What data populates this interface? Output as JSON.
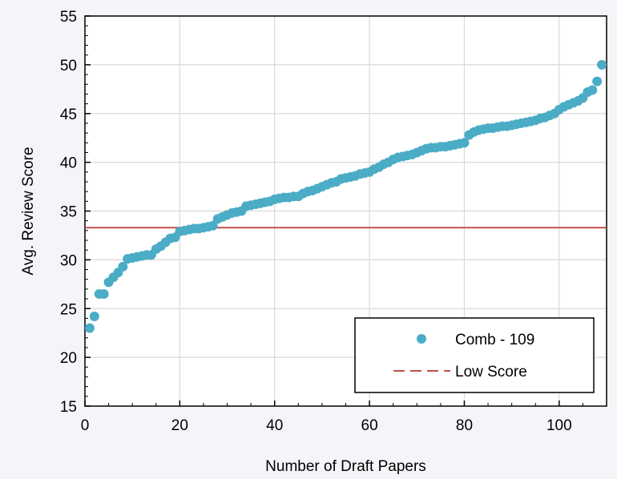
{
  "chart_data": {
    "type": "scatter",
    "xlabel": "Number of Draft Papers",
    "ylabel": "Avg. Review Score",
    "xlim": [
      0,
      110
    ],
    "ylim": [
      15,
      55
    ],
    "x_ticks": [
      0,
      20,
      40,
      60,
      80,
      100
    ],
    "y_ticks": [
      15,
      20,
      25,
      30,
      35,
      40,
      45,
      50,
      55
    ],
    "grid": true,
    "legend_position": "bottom-right",
    "colors": {
      "points": "#4bacc6",
      "line": "#c0504d"
    },
    "series": [
      {
        "name": "Comb - 109",
        "type": "scatter",
        "x": [
          1,
          2,
          3,
          4,
          5,
          6,
          7,
          8,
          9,
          10,
          11,
          12,
          13,
          14,
          15,
          16,
          17,
          18,
          19,
          20,
          21,
          22,
          23,
          24,
          25,
          26,
          27,
          28,
          29,
          30,
          31,
          32,
          33,
          34,
          35,
          36,
          37,
          38,
          39,
          40,
          41,
          42,
          43,
          44,
          45,
          46,
          47,
          48,
          49,
          50,
          51,
          52,
          53,
          54,
          55,
          56,
          57,
          58,
          59,
          60,
          61,
          62,
          63,
          64,
          65,
          66,
          67,
          68,
          69,
          70,
          71,
          72,
          73,
          74,
          75,
          76,
          77,
          78,
          79,
          80,
          81,
          82,
          83,
          84,
          85,
          86,
          87,
          88,
          89,
          90,
          91,
          92,
          93,
          94,
          95,
          96,
          97,
          98,
          99,
          100,
          101,
          102,
          103,
          104,
          105,
          106,
          107,
          108,
          109
        ],
        "y": [
          23.0,
          24.2,
          26.5,
          26.5,
          27.7,
          28.2,
          28.7,
          29.3,
          30.1,
          30.2,
          30.3,
          30.4,
          30.5,
          30.5,
          31.1,
          31.4,
          31.8,
          32.2,
          32.3,
          32.9,
          33.0,
          33.1,
          33.2,
          33.2,
          33.3,
          33.4,
          33.5,
          34.2,
          34.4,
          34.6,
          34.8,
          34.9,
          35.0,
          35.5,
          35.6,
          35.7,
          35.8,
          35.9,
          36.0,
          36.2,
          36.3,
          36.4,
          36.4,
          36.5,
          36.5,
          36.8,
          37.0,
          37.1,
          37.3,
          37.5,
          37.7,
          37.9,
          38.0,
          38.3,
          38.4,
          38.5,
          38.6,
          38.8,
          38.9,
          39.0,
          39.3,
          39.5,
          39.8,
          40.0,
          40.3,
          40.5,
          40.6,
          40.7,
          40.8,
          41.0,
          41.2,
          41.4,
          41.5,
          41.5,
          41.6,
          41.6,
          41.7,
          41.8,
          41.9,
          42.0,
          42.8,
          43.1,
          43.3,
          43.4,
          43.5,
          43.5,
          43.6,
          43.7,
          43.7,
          43.8,
          43.9,
          44.0,
          44.1,
          44.2,
          44.3,
          44.5,
          44.6,
          44.8,
          45.0,
          45.4,
          45.7,
          45.9,
          46.1,
          46.3,
          46.6,
          47.2,
          47.4,
          48.3,
          50.0
        ]
      },
      {
        "name": "Low Score",
        "type": "line",
        "x": [
          0,
          110
        ],
        "y": [
          33.3,
          33.3
        ]
      }
    ]
  }
}
